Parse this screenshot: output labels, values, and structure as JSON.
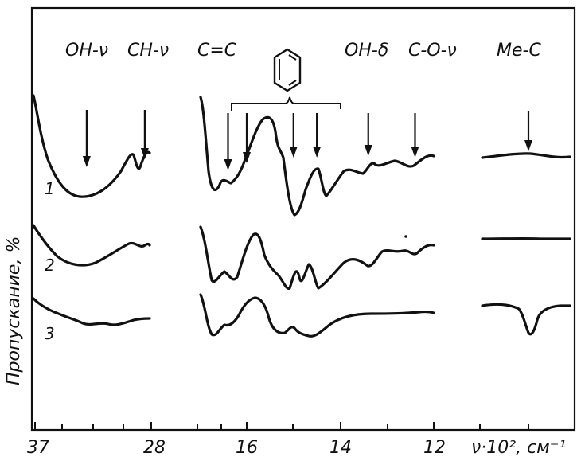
{
  "chart_data": {
    "type": "line",
    "title": "",
    "xlabel": "ν·10², см⁻¹",
    "ylabel": "Пропускание, %",
    "x_tick_labels": [
      "37",
      "28",
      "16",
      "14",
      "12"
    ],
    "band_labels": [
      "OH-ν",
      "CH-ν",
      "C=C",
      "OH-δ",
      "C-O-ν",
      "Me-C"
    ],
    "benzene_region_marker": "benzene-ring",
    "series": [
      {
        "name": "1"
      },
      {
        "name": "2"
      },
      {
        "name": "3"
      }
    ],
    "absorption_arrows_x": [
      3300,
      2850,
      1640,
      1600,
      1500,
      1450,
      1340,
      1240,
      600
    ],
    "grid": false,
    "legend": "none"
  }
}
